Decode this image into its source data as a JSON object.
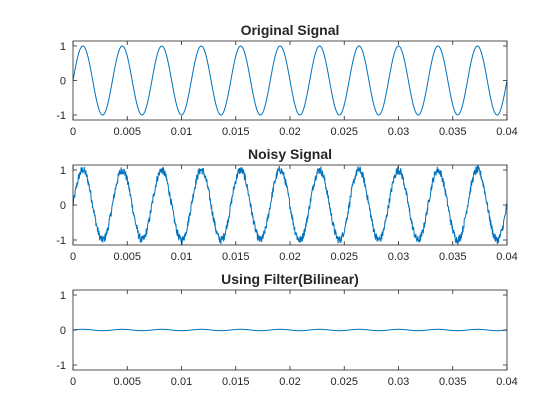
{
  "chart_data": [
    {
      "type": "line",
      "title": "Original Signal",
      "xlabel": "",
      "ylabel": "",
      "xlim": [
        0,
        0.04
      ],
      "ylim": [
        -1,
        1
      ],
      "xticks": [
        "0",
        "0.005",
        "0.01",
        "0.015",
        "0.02",
        "0.025",
        "0.03",
        "0.035",
        "0.04"
      ],
      "yticks": [
        "-1",
        "0",
        "1"
      ],
      "grid": false,
      "series": [
        {
          "color": "#0072BD",
          "function": "sin(2*pi*f*x)",
          "frequency_hz": 275,
          "amplitude": 1,
          "noise_amplitude": 0
        }
      ]
    },
    {
      "type": "line",
      "title": "Noisy Signal",
      "xlabel": "",
      "ylabel": "",
      "xlim": [
        0,
        0.04
      ],
      "ylim": [
        -1,
        1
      ],
      "xticks": [
        "0",
        "0.005",
        "0.01",
        "0.015",
        "0.02",
        "0.025",
        "0.03",
        "0.035",
        "0.04"
      ],
      "yticks": [
        "-1",
        "0",
        "1"
      ],
      "grid": false,
      "series": [
        {
          "color": "#0072BD",
          "function": "sin(2*pi*f*x) + noise",
          "frequency_hz": 275,
          "amplitude": 1,
          "noise_amplitude": 0.12
        }
      ]
    },
    {
      "type": "line",
      "title": "Using Filter(Bilinear)",
      "xlabel": "",
      "ylabel": "",
      "xlim": [
        0,
        0.04
      ],
      "ylim": [
        -1,
        1
      ],
      "xticks": [
        "0",
        "0.005",
        "0.01",
        "0.015",
        "0.02",
        "0.025",
        "0.03",
        "0.035",
        "0.04"
      ],
      "yticks": [
        "-1",
        "0",
        "1"
      ],
      "grid": false,
      "series": [
        {
          "color": "#0072BD",
          "function": "A*sin(2*pi*f*x)",
          "frequency_hz": 275,
          "amplitude": 0.02,
          "noise_amplitude": 0
        }
      ]
    }
  ]
}
